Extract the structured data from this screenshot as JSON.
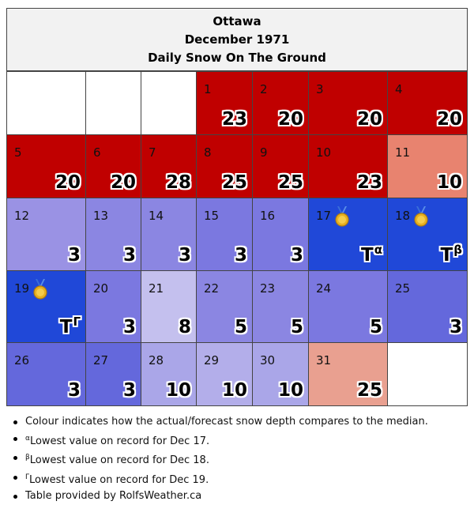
{
  "header": {
    "city": "Ottawa",
    "month": "December 1971",
    "subtitle": "Daily Snow On The Ground"
  },
  "calendar": {
    "weeks": [
      [
        null,
        null,
        null,
        {
          "day": "1",
          "value": "23",
          "color": "#c00000"
        },
        {
          "day": "2",
          "value": "20",
          "color": "#c00000"
        },
        {
          "day": "3",
          "value": "20",
          "color": "#c00000"
        },
        {
          "day": "4",
          "value": "20",
          "color": "#c00000"
        }
      ],
      [
        {
          "day": "5",
          "value": "20",
          "color": "#c00000"
        },
        {
          "day": "6",
          "value": "20",
          "color": "#c00000"
        },
        {
          "day": "7",
          "value": "28",
          "color": "#c00000"
        },
        {
          "day": "8",
          "value": "25",
          "color": "#c00000"
        },
        {
          "day": "9",
          "value": "25",
          "color": "#c00000"
        },
        {
          "day": "10",
          "value": "23",
          "color": "#c00000"
        },
        {
          "day": "11",
          "value": "10",
          "color": "#e8836f"
        }
      ],
      [
        {
          "day": "12",
          "value": "3",
          "color": "#9a92e4"
        },
        {
          "day": "13",
          "value": "3",
          "color": "#8b86e2"
        },
        {
          "day": "14",
          "value": "3",
          "color": "#8b86e2"
        },
        {
          "day": "15",
          "value": "3",
          "color": "#7b78e0"
        },
        {
          "day": "16",
          "value": "3",
          "color": "#7b78e0"
        },
        {
          "day": "17",
          "value": "T",
          "sup": "α",
          "color": "#2048d8",
          "medal": true
        },
        {
          "day": "18",
          "value": "T",
          "sup": "β",
          "color": "#2048d8",
          "medal": true
        }
      ],
      [
        {
          "day": "19",
          "value": "T",
          "sup": "Γ",
          "color": "#2048d8",
          "medal": true
        },
        {
          "day": "20",
          "value": "3",
          "color": "#7b78e0"
        },
        {
          "day": "21",
          "value": "8",
          "color": "#c4c0ee"
        },
        {
          "day": "22",
          "value": "5",
          "color": "#8b86e2"
        },
        {
          "day": "23",
          "value": "5",
          "color": "#8b86e2"
        },
        {
          "day": "24",
          "value": "5",
          "color": "#7b78e0"
        },
        {
          "day": "25",
          "value": "3",
          "color": "#6468dc"
        }
      ],
      [
        {
          "day": "26",
          "value": "3",
          "color": "#6468dc"
        },
        {
          "day": "27",
          "value": "3",
          "color": "#6468dc"
        },
        {
          "day": "28",
          "value": "10",
          "color": "#aaa6e8"
        },
        {
          "day": "29",
          "value": "10",
          "color": "#b3aeea"
        },
        {
          "day": "30",
          "value": "10",
          "color": "#aaa6e8"
        },
        {
          "day": "31",
          "value": "25",
          "color": "#e9a090"
        },
        null
      ]
    ]
  },
  "notes": {
    "colour": "Colour indicates how the actual/forecast snow depth compares to the median.",
    "alpha_sym": "α",
    "alpha": "Lowest value on record for Dec 17.",
    "beta_sym": "β",
    "beta": "Lowest value on record for Dec 18.",
    "gamma_sym": "Γ",
    "gamma": "Lowest value on record for Dec 19.",
    "credit": "Table provided by RolfsWeather.ca"
  },
  "icons": {
    "record": "gold-medal-icon"
  }
}
